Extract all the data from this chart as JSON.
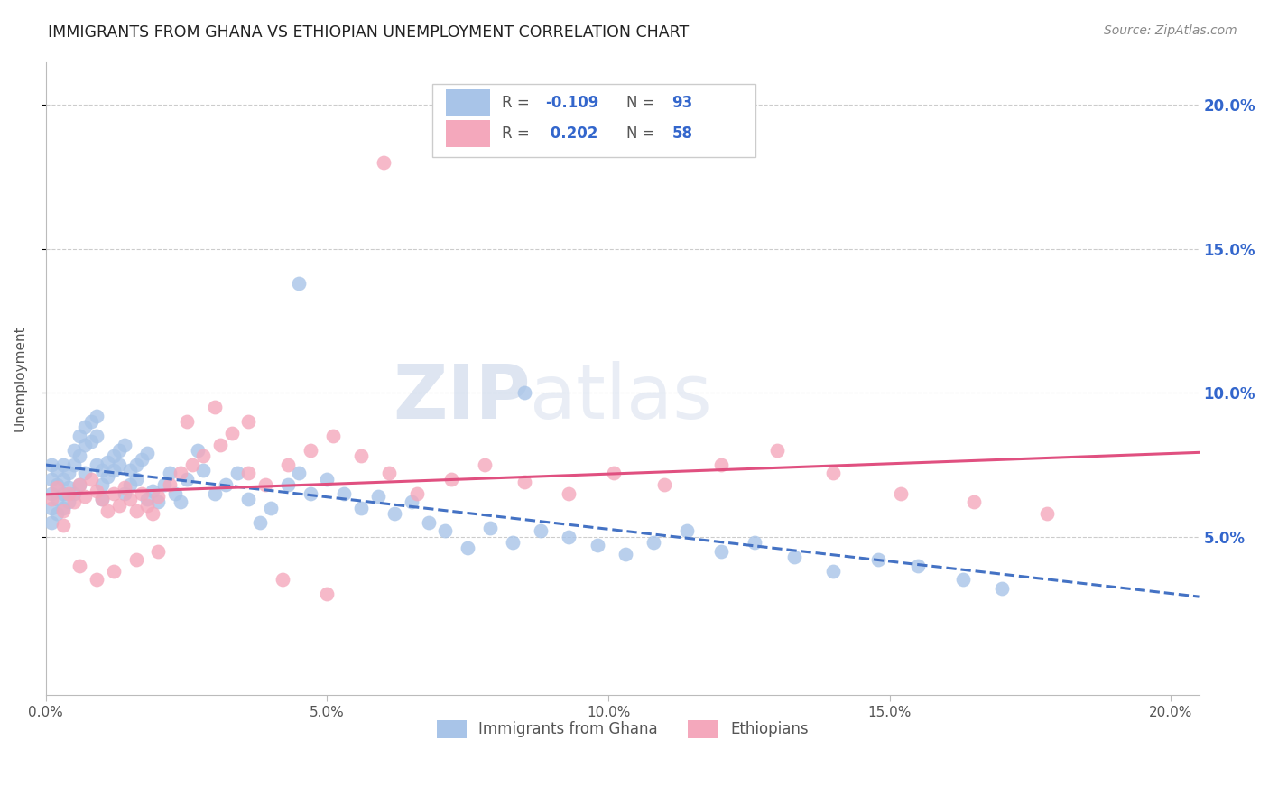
{
  "title": "IMMIGRANTS FROM GHANA VS ETHIOPIAN UNEMPLOYMENT CORRELATION CHART",
  "source": "Source: ZipAtlas.com",
  "ylabel": "Unemployment",
  "blue_label": "Immigrants from Ghana",
  "pink_label": "Ethiopians",
  "blue_R": "-0.109",
  "blue_N": "93",
  "pink_R": "0.202",
  "pink_N": "58",
  "blue_color": "#a8c4e8",
  "pink_color": "#f4a8bc",
  "blue_line_color": "#4472c4",
  "pink_line_color": "#e05080",
  "background_color": "#ffffff",
  "watermark": "ZIPatlas",
  "xlim": [
    0.0,
    0.205
  ],
  "ylim": [
    -0.005,
    0.215
  ],
  "xtick_vals": [
    0.0,
    0.05,
    0.1,
    0.15,
    0.2
  ],
  "xtick_labels": [
    "0.0%",
    "5.0%",
    "10.0%",
    "15.0%",
    "20.0%"
  ],
  "ytick_vals": [
    0.05,
    0.1,
    0.15,
    0.2
  ],
  "ytick_labels": [
    "5.0%",
    "10.0%",
    "15.0%",
    "20.0%"
  ],
  "blue_x": [
    0.001,
    0.001,
    0.001,
    0.001,
    0.001,
    0.002,
    0.002,
    0.002,
    0.002,
    0.003,
    0.003,
    0.003,
    0.003,
    0.004,
    0.004,
    0.004,
    0.005,
    0.005,
    0.005,
    0.006,
    0.006,
    0.006,
    0.007,
    0.007,
    0.007,
    0.008,
    0.008,
    0.009,
    0.009,
    0.009,
    0.01,
    0.01,
    0.01,
    0.011,
    0.011,
    0.012,
    0.012,
    0.013,
    0.013,
    0.014,
    0.014,
    0.015,
    0.015,
    0.016,
    0.016,
    0.017,
    0.018,
    0.018,
    0.019,
    0.02,
    0.021,
    0.022,
    0.023,
    0.024,
    0.025,
    0.027,
    0.028,
    0.03,
    0.032,
    0.034,
    0.036,
    0.038,
    0.04,
    0.043,
    0.045,
    0.047,
    0.05,
    0.053,
    0.056,
    0.059,
    0.062,
    0.065,
    0.068,
    0.071,
    0.075,
    0.079,
    0.083,
    0.088,
    0.093,
    0.098,
    0.103,
    0.108,
    0.114,
    0.12,
    0.126,
    0.133,
    0.14,
    0.148,
    0.155,
    0.163,
    0.17,
    0.045,
    0.085
  ],
  "blue_y": [
    0.065,
    0.07,
    0.075,
    0.06,
    0.055,
    0.068,
    0.073,
    0.063,
    0.058,
    0.07,
    0.075,
    0.065,
    0.06,
    0.072,
    0.067,
    0.062,
    0.08,
    0.075,
    0.065,
    0.085,
    0.078,
    0.068,
    0.088,
    0.082,
    0.072,
    0.09,
    0.083,
    0.092,
    0.085,
    0.075,
    0.073,
    0.068,
    0.063,
    0.076,
    0.071,
    0.078,
    0.073,
    0.08,
    0.075,
    0.082,
    0.065,
    0.073,
    0.068,
    0.075,
    0.07,
    0.077,
    0.079,
    0.063,
    0.066,
    0.062,
    0.068,
    0.072,
    0.065,
    0.062,
    0.07,
    0.08,
    0.073,
    0.065,
    0.068,
    0.072,
    0.063,
    0.055,
    0.06,
    0.068,
    0.072,
    0.065,
    0.07,
    0.065,
    0.06,
    0.064,
    0.058,
    0.062,
    0.055,
    0.052,
    0.046,
    0.053,
    0.048,
    0.052,
    0.05,
    0.047,
    0.044,
    0.048,
    0.052,
    0.045,
    0.048,
    0.043,
    0.038,
    0.042,
    0.04,
    0.035,
    0.032,
    0.138,
    0.1
  ],
  "pink_x": [
    0.001,
    0.002,
    0.003,
    0.004,
    0.005,
    0.006,
    0.007,
    0.008,
    0.009,
    0.01,
    0.011,
    0.012,
    0.013,
    0.014,
    0.015,
    0.016,
    0.017,
    0.018,
    0.019,
    0.02,
    0.022,
    0.024,
    0.026,
    0.028,
    0.031,
    0.033,
    0.036,
    0.039,
    0.043,
    0.047,
    0.051,
    0.056,
    0.061,
    0.066,
    0.072,
    0.078,
    0.085,
    0.093,
    0.101,
    0.11,
    0.12,
    0.13,
    0.14,
    0.152,
    0.165,
    0.178,
    0.003,
    0.006,
    0.009,
    0.012,
    0.016,
    0.02,
    0.025,
    0.03,
    0.036,
    0.042,
    0.05,
    0.06
  ],
  "pink_y": [
    0.063,
    0.067,
    0.059,
    0.065,
    0.062,
    0.068,
    0.064,
    0.07,
    0.066,
    0.063,
    0.059,
    0.065,
    0.061,
    0.067,
    0.063,
    0.059,
    0.065,
    0.061,
    0.058,
    0.064,
    0.068,
    0.072,
    0.075,
    0.078,
    0.082,
    0.086,
    0.072,
    0.068,
    0.075,
    0.08,
    0.085,
    0.078,
    0.072,
    0.065,
    0.07,
    0.075,
    0.069,
    0.065,
    0.072,
    0.068,
    0.075,
    0.08,
    0.072,
    0.065,
    0.062,
    0.058,
    0.054,
    0.04,
    0.035,
    0.038,
    0.042,
    0.045,
    0.09,
    0.095,
    0.09,
    0.035,
    0.03,
    0.18
  ]
}
